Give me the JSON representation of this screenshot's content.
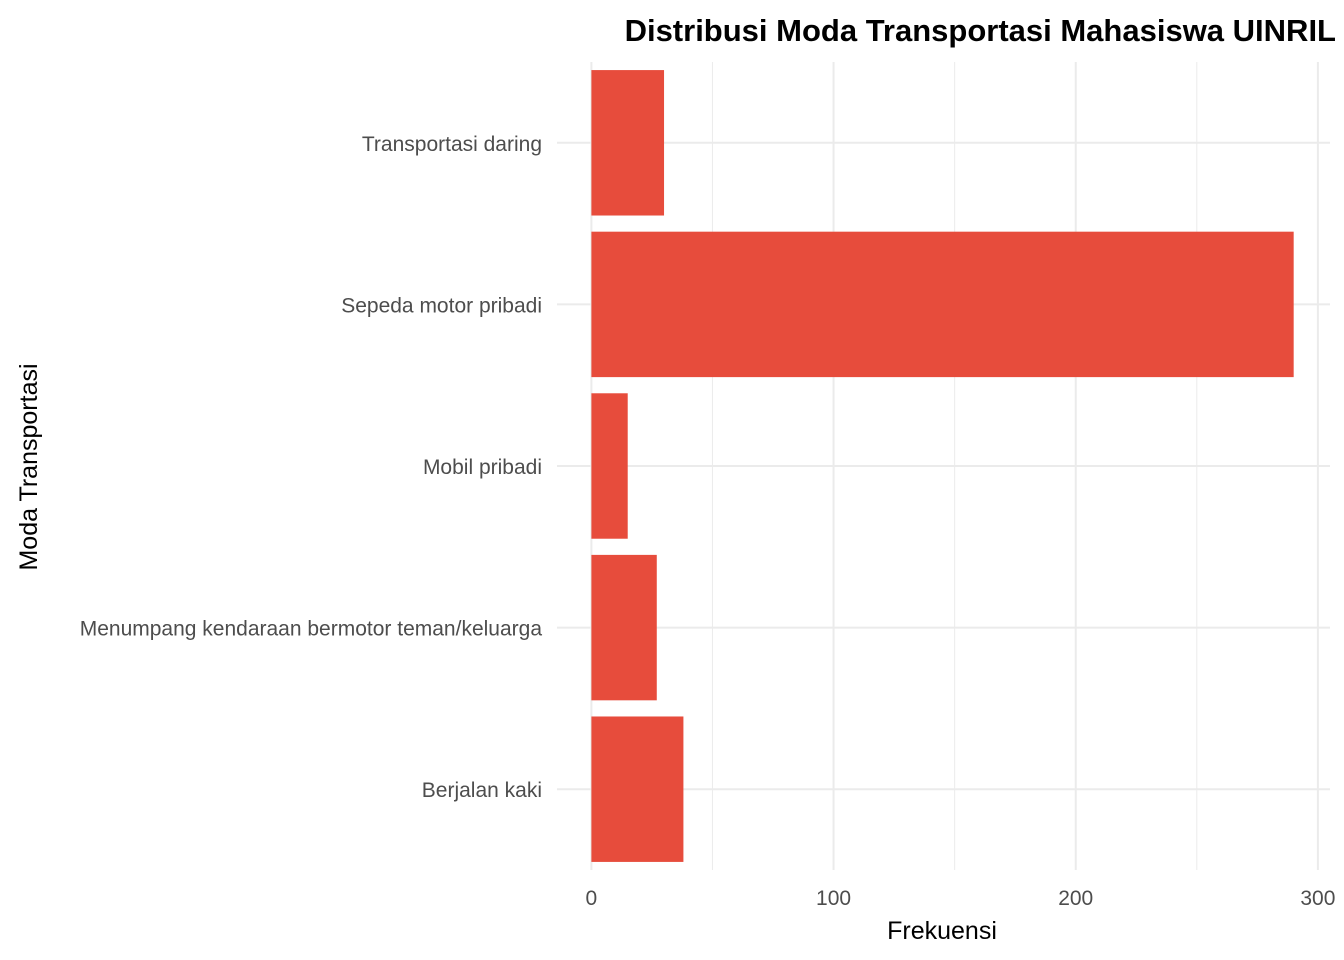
{
  "chart_data": {
    "type": "bar",
    "orientation": "horizontal",
    "title": "Distribusi Moda Transportasi Mahasiswa UINRIL",
    "xlabel": "Frekuensi",
    "ylabel": "Moda Transportasi",
    "categories": [
      "Transportasi daring",
      "Sepeda motor pribadi",
      "Mobil pribadi",
      "Menumpang kendaraan bermotor teman/keluarga",
      "Berjalan kaki"
    ],
    "values": [
      30,
      290,
      15,
      27,
      38
    ],
    "xlim": [
      -14.2,
      305
    ],
    "xticks": [
      0,
      100,
      200,
      300
    ],
    "xtick_labels": [
      "0",
      "100",
      "200",
      "300"
    ],
    "grid": true,
    "bar_color": "#E74C3C",
    "grid_color": "#EBEBEB"
  }
}
